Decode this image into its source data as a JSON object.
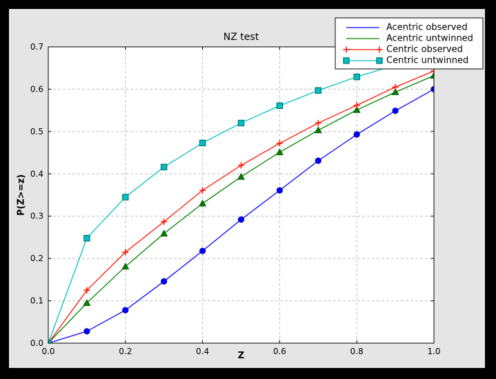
{
  "window": {
    "background_color": "#000000",
    "figure_color": "#e5e5e5",
    "plot_color": "#ffffff",
    "grid_color": "#bdbdbd",
    "frame_color": "#000000",
    "text_color": "#000000",
    "legend_background": "#ffffff",
    "legend_border": "#000000"
  },
  "chart_data": {
    "type": "line",
    "title": "NZ test",
    "xlabel": "Z",
    "ylabel": "P(Z>=z)",
    "xlim": [
      0.0,
      1.0
    ],
    "ylim": [
      0.0,
      0.7
    ],
    "grid": true,
    "legend_position": "upper right",
    "xtick_values": [
      0.0,
      0.2,
      0.4,
      0.6,
      0.8,
      1.0
    ],
    "xtick_labels": [
      "0.0",
      "0.2",
      "0.4",
      "0.6",
      "0.8",
      "1.0"
    ],
    "ytick_values": [
      0.0,
      0.1,
      0.2,
      0.3,
      0.4,
      0.5,
      0.6,
      0.7
    ],
    "ytick_labels": [
      "0.0",
      "0.1",
      "0.2",
      "0.3",
      "0.4",
      "0.5",
      "0.6",
      "0.7"
    ],
    "x": [
      0.0,
      0.1,
      0.2,
      0.3,
      0.4,
      0.5,
      0.6,
      0.7,
      0.8,
      0.9,
      1.0
    ],
    "series": [
      {
        "name": "Acentric observed",
        "color": "#0000ff",
        "marker": "circle",
        "marker_edge": "#000099",
        "legend_markers": false,
        "values": [
          0.0,
          0.028,
          0.078,
          0.146,
          0.218,
          0.292,
          0.361,
          0.431,
          0.493,
          0.549,
          0.6
        ]
      },
      {
        "name": "Acentric untwinned",
        "color": "#008000",
        "marker": "triangle",
        "marker_edge": "#004d00",
        "legend_markers": false,
        "values": [
          0.0,
          0.095,
          0.181,
          0.259,
          0.33,
          0.393,
          0.451,
          0.503,
          0.551,
          0.593,
          0.632
        ]
      },
      {
        "name": "Centric observed",
        "color": "#ff1400",
        "marker": "plus",
        "marker_edge": "#ff1400",
        "legend_markers": true,
        "values": [
          0.0,
          0.125,
          0.215,
          0.287,
          0.361,
          0.42,
          0.472,
          0.52,
          0.562,
          0.605,
          0.643
        ]
      },
      {
        "name": "Centric untwinned",
        "color": "#00bfbf",
        "marker": "square",
        "marker_edge": "#006666",
        "legend_markers": true,
        "values": [
          0.0,
          0.248,
          0.345,
          0.416,
          0.473,
          0.52,
          0.561,
          0.597,
          0.629,
          0.657,
          0.683
        ]
      }
    ]
  }
}
